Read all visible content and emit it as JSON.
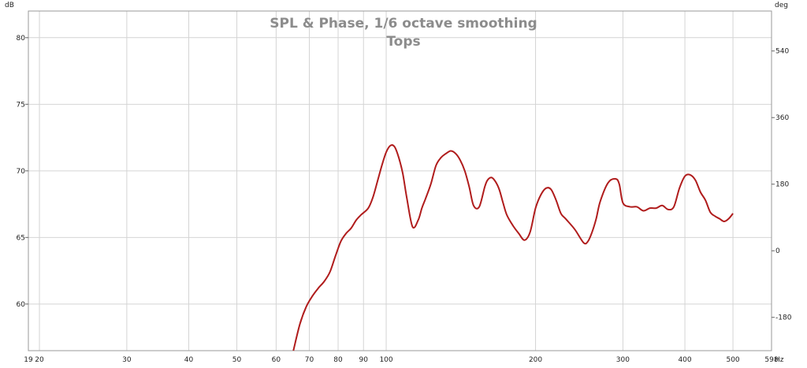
{
  "chart_data": {
    "type": "line",
    "title": "SPL & Phase, 1/6 octave smoothing",
    "subtitle": "Tops",
    "y_left_unit": "dB",
    "y_right_unit": "deg",
    "x_unit": "Hz",
    "x_scale": "log",
    "xlim": [
      19,
      598
    ],
    "ylim": [
      56.5,
      82
    ],
    "y2lim": [
      -270,
      648
    ],
    "grid": true,
    "x_ticks": [
      19,
      20,
      30,
      40,
      50,
      60,
      70,
      80,
      90,
      100,
      200,
      300,
      400,
      500,
      598
    ],
    "x_tick_labels": [
      "19",
      "20",
      "30",
      "40",
      "50",
      "60",
      "70",
      "80",
      "90",
      "100",
      "200",
      "300",
      "400",
      "500",
      "598"
    ],
    "y_ticks": [
      60,
      65,
      70,
      75,
      80
    ],
    "y_tick_labels": [
      "60",
      "65",
      "70",
      "75",
      "80"
    ],
    "y2_ticks": [
      -180,
      0,
      180,
      360,
      540
    ],
    "y2_tick_labels": [
      "-180",
      "0",
      "180",
      "360",
      "540"
    ],
    "colors": {
      "line": "#b01c1c",
      "grid": "#d4d4d4",
      "frame": "#9a9a9a"
    },
    "series": [
      {
        "x": [
          65,
          67,
          69,
          71,
          73,
          75,
          77,
          79,
          81,
          83,
          85,
          87,
          89,
          92,
          94,
          96,
          98,
          100,
          102,
          104,
          106,
          108,
          110,
          113,
          116,
          118,
          120,
          123,
          126,
          129,
          132,
          135,
          138,
          141,
          144,
          147,
          150,
          154,
          158,
          160,
          163,
          166,
          169,
          172,
          175,
          180,
          185,
          190,
          195,
          200,
          205,
          210,
          215,
          220,
          225,
          230,
          240,
          250,
          255,
          260,
          265,
          270,
          280,
          290,
          295,
          300,
          310,
          320,
          330,
          340,
          350,
          360,
          370,
          380,
          390,
          400,
          410,
          420,
          430,
          440,
          450,
          460,
          470,
          480,
          490,
          500
        ],
        "y": [
          56.5,
          58.5,
          59.8,
          60.6,
          61.2,
          61.7,
          62.4,
          63.6,
          64.7,
          65.3,
          65.7,
          66.3,
          66.7,
          67.2,
          68.0,
          69.2,
          70.4,
          71.4,
          71.9,
          71.8,
          71.0,
          69.8,
          68.0,
          65.8,
          66.3,
          67.2,
          67.9,
          69.0,
          70.4,
          71.0,
          71.3,
          71.5,
          71.3,
          70.8,
          70.0,
          68.8,
          67.4,
          67.3,
          68.8,
          69.3,
          69.5,
          69.2,
          68.6,
          67.6,
          66.7,
          65.9,
          65.3,
          64.8,
          65.4,
          67.2,
          68.2,
          68.7,
          68.6,
          67.8,
          66.8,
          66.4,
          65.6,
          64.6,
          64.7,
          65.4,
          66.4,
          67.7,
          69.1,
          69.4,
          69.0,
          67.6,
          67.3,
          67.3,
          67.0,
          67.2,
          67.2,
          67.4,
          67.1,
          67.3,
          68.7,
          69.6,
          69.7,
          69.3,
          68.4,
          67.8,
          66.9,
          66.6,
          66.4,
          66.2,
          66.4,
          66.8
        ]
      }
    ]
  }
}
